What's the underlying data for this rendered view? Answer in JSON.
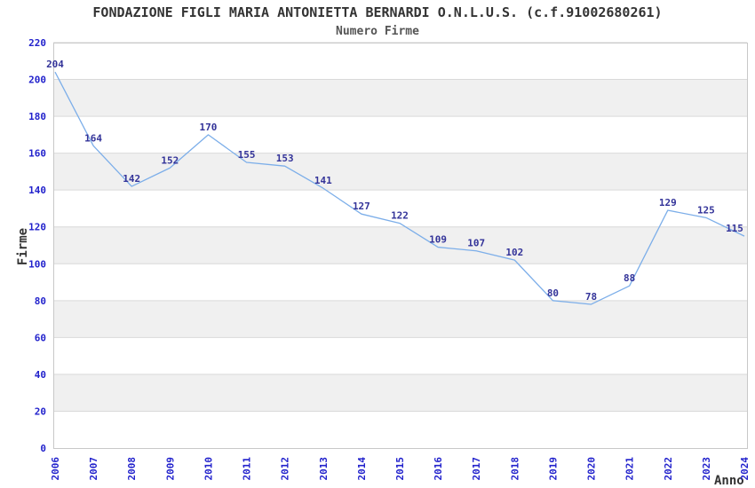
{
  "header": {
    "title": "FONDAZIONE FIGLI MARIA ANTONIETTA BERNARDI O.N.L.U.S. (c.f.91002680261)",
    "subtitle": "Numero Firme"
  },
  "chart_data": {
    "type": "line",
    "title": "FONDAZIONE FIGLI MARIA ANTONIETTA BERNARDI O.N.L.U.S. (c.f.91002680261)",
    "subtitle": "Numero Firme",
    "xlabel": "Anno",
    "ylabel": "Firme",
    "x": [
      "2006",
      "2007",
      "2008",
      "2009",
      "2010",
      "2011",
      "2012",
      "2013",
      "2014",
      "2015",
      "2016",
      "2017",
      "2018",
      "2019",
      "2020",
      "2021",
      "2022",
      "2023",
      "2024"
    ],
    "series": [
      {
        "name": "Numero Firme",
        "values": [
          204,
          164,
          142,
          152,
          170,
          155,
          153,
          141,
          127,
          122,
          109,
          107,
          102,
          80,
          78,
          88,
          129,
          125,
          115
        ]
      }
    ],
    "ylim": [
      0,
      220
    ],
    "ytick_step": 20,
    "yticks": [
      0,
      20,
      40,
      60,
      80,
      100,
      120,
      140,
      160,
      180,
      200,
      220
    ],
    "grid": "horizontal gridlines every 20 with alternating light-gray bands",
    "legend": "none",
    "x_tick_rotation_deg": -90,
    "data_labels_shown": true,
    "colors": {
      "line": "#7caee9",
      "band": "#f0f0f0",
      "gridline": "#d9d9d9",
      "border": "#c8c8c8",
      "tick_label": "#2222cc",
      "data_label": "#333399",
      "title": "#333333",
      "subtitle": "#555555",
      "axis_label": "#333333",
      "background": "#ffffff"
    }
  }
}
